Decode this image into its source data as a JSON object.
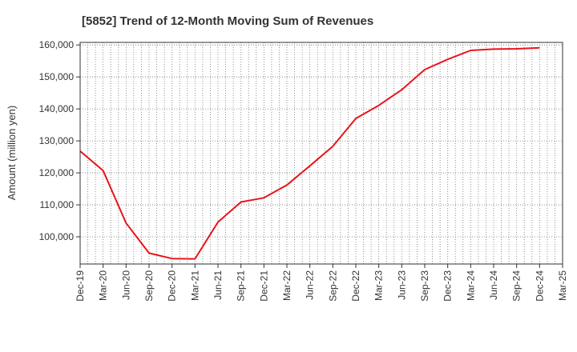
{
  "chart_data": {
    "type": "line",
    "title": "[5852]  Trend of 12-Month Moving Sum of Revenues",
    "xlabel": "",
    "ylabel": "Amount (million yen)",
    "x_ticks": [
      "Dec-19",
      "Mar-20",
      "Jun-20",
      "Sep-20",
      "Dec-20",
      "Mar-21",
      "Jun-21",
      "Sep-21",
      "Dec-21",
      "Mar-22",
      "Jun-22",
      "Sep-22",
      "Dec-22",
      "Mar-23",
      "Jun-23",
      "Sep-23",
      "Dec-23",
      "Mar-24",
      "Jun-24",
      "Sep-24",
      "Dec-24",
      "Mar-25"
    ],
    "y_ticks": [
      "100,000",
      "110,000",
      "120,000",
      "130,000",
      "140,000",
      "150,000",
      "160,000"
    ],
    "ylim": [
      91500,
      160800
    ],
    "grid": true,
    "series": [
      {
        "color": "#e8141b",
        "x": [
          "Dec-19",
          "Mar-20",
          "Jun-20",
          "Sep-20",
          "Dec-20",
          "Mar-21",
          "Jun-21",
          "Sep-21",
          "Dec-21",
          "Mar-22",
          "Jun-22",
          "Sep-22",
          "Dec-22",
          "Mar-23",
          "Jun-23",
          "Sep-23",
          "Dec-23",
          "Mar-24",
          "Jun-24",
          "Sep-24",
          "Dec-24"
        ],
        "values": [
          126800,
          120700,
          104300,
          94900,
          93200,
          93100,
          104600,
          110900,
          112200,
          116200,
          122200,
          128300,
          137000,
          141100,
          146000,
          152300,
          155500,
          158300,
          158700,
          158800,
          159100
        ]
      }
    ]
  }
}
